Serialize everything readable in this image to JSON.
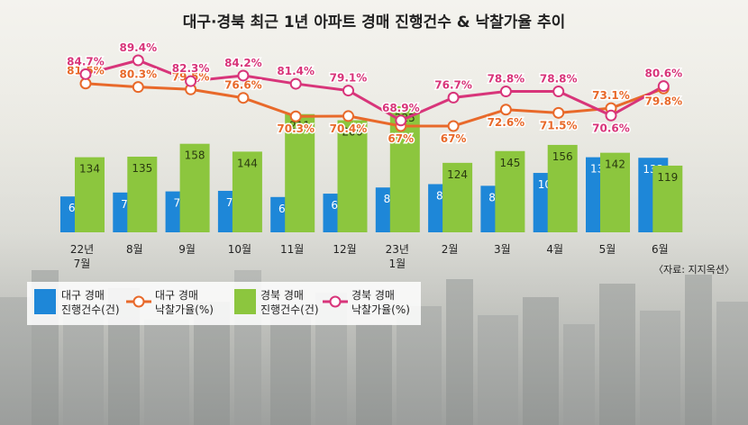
{
  "chart_data": {
    "type": "bar",
    "title": "대구·경북 최근 1년 아파트 경매 진행건수 & 낙찰가율 추이",
    "categories": [
      "22년\n7월",
      "8월",
      "9월",
      "10월",
      "11월",
      "12월",
      "23년\n1월",
      "2월",
      "3월",
      "4월",
      "5월",
      "6월"
    ],
    "series": [
      {
        "name": "대구 경매 진행건수(건)",
        "kind": "bar",
        "color": "#1e87d8",
        "values": [
          64,
          71,
          73,
          74,
          63,
          69,
          80,
          86,
          83,
          106,
          134,
          133
        ]
      },
      {
        "name": "경북 경매 진행건수(건)",
        "kind": "bar",
        "color": "#8cc63e",
        "values": [
          134,
          135,
          158,
          144,
          211,
          200,
          225,
          124,
          145,
          156,
          142,
          119
        ]
      },
      {
        "name": "대구 경매 낙찰가율(%)",
        "kind": "line",
        "color": "#e8692a",
        "values": [
          81.5,
          80.3,
          79.5,
          76.6,
          70.3,
          70.4,
          67,
          67,
          72.6,
          71.5,
          73.1,
          79.8
        ]
      },
      {
        "name": "경북 경매 낙찰가율(%)",
        "kind": "line",
        "color": "#d8357a",
        "values": [
          84.7,
          89.4,
          82.3,
          84.2,
          81.4,
          79.1,
          68.9,
          76.7,
          78.8,
          78.8,
          70.6,
          80.6
        ]
      }
    ],
    "bar_labels": {
      "daegu": [
        "64",
        "71",
        "73",
        "74",
        "63",
        "69",
        "80",
        "86",
        "83",
        "106",
        "134",
        "133"
      ],
      "gyeongbuk": [
        "134",
        "135",
        "158",
        "144",
        "211",
        "200",
        "225",
        "124",
        "145",
        "156",
        "142",
        "119"
      ]
    },
    "line_labels": {
      "daegu": [
        "81.5%",
        "80.3%",
        "79.5%",
        "76.6%",
        "70.3%",
        "70.4%",
        "67%",
        "67%",
        "72.6%",
        "71.5%",
        "73.1%",
        "79.8%"
      ],
      "gyeongbuk": [
        "84.7%",
        "89.4%",
        "82.3%",
        "84.2%",
        "81.4%",
        "79.1%",
        "68.9%",
        "76.7%",
        "78.8%",
        "78.8%",
        "70.6%",
        "80.6%"
      ]
    },
    "bar_ylim": [
      0,
      225
    ],
    "line_ylim": [
      67,
      89.4
    ],
    "legend_position": "bottom-left",
    "grid": false
  },
  "legend": {
    "daegu_count": "대구 경매\n진행건수(건)",
    "daegu_rate": "대구 경매\n낙찰가율(%)",
    "gb_count": "경북 경매\n진행건수(건)",
    "gb_rate": "경북 경매\n낙찰가율(%)"
  },
  "source": "〈자료: 지지옥션〉"
}
